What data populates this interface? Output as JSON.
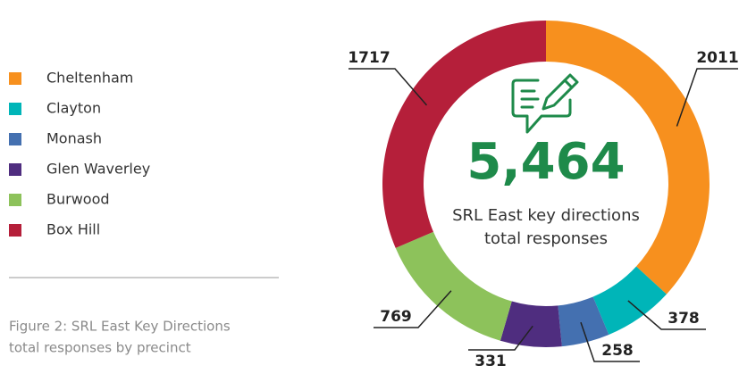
{
  "chart_data": {
    "type": "donut",
    "categories": [
      "Cheltenham",
      "Clayton",
      "Monash",
      "Glen Waverley",
      "Burwood",
      "Box Hill"
    ],
    "values": [
      2011,
      378,
      258,
      331,
      769,
      1717
    ],
    "colors": [
      "#f7901e",
      "#00b5b8",
      "#4470b0",
      "#4f2d7f",
      "#8dc25b",
      "#b51f3a"
    ],
    "total_label": "5,464",
    "center_text": [
      "SRL East key directions",
      "total responses"
    ],
    "caption": [
      "Figure 2:  SRL East Key Directions",
      "total responses by precinct"
    ]
  }
}
